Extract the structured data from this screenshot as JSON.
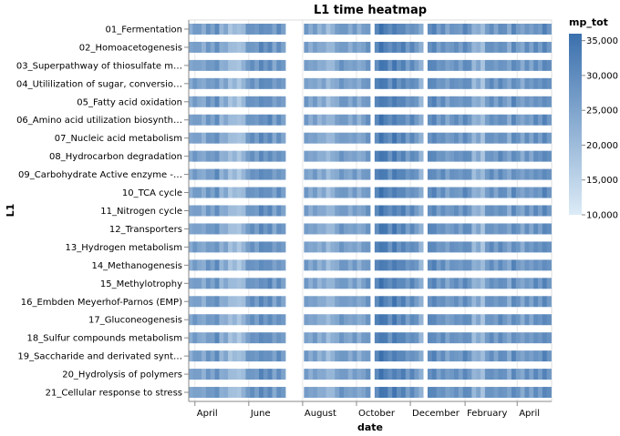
{
  "chart_data": {
    "type": "heatmap",
    "title": "L1 time heatmap",
    "xlabel": "date",
    "ylabel": "L1",
    "x_tick_labels": [
      "April",
      "June",
      "August",
      "October",
      "December",
      "February",
      "April"
    ],
    "x_domain": [
      "2020-03-25",
      "2021-05-10"
    ],
    "x_ticks": [
      "2020-04-01",
      "2020-06-01",
      "2020-08-01",
      "2020-10-01",
      "2020-12-01",
      "2021-02-01",
      "2021-04-01"
    ],
    "categories": [
      "01_Fermentation",
      "02_Homoacetogenesis",
      "03_Superpathway of thiosulfate m…",
      "04_Utililization of sugar, conversio…",
      "05_Fatty acid oxidation",
      "06_Amino acid utilization biosynth…",
      "07_Nucleic acid metabolism",
      "08_Hydrocarbon degradation",
      "09_Carbohydrate Active enzyme -…",
      "10_TCA cycle",
      "11_Nitrogen cycle",
      "12_Transporters",
      "13_Hydrogen metabolism",
      "14_Methanogenesis",
      "15_Methylotrophy",
      "16_Embden Meyerhof-Parnos (EMP)",
      "17_Gluconeogenesis",
      "18_Sulfur compounds metabolism",
      "19_Saccharide and derivated synt…",
      "20_Hydrolysis of polymers",
      "21_Cellular response to stress"
    ],
    "columns": [
      {
        "date": "2020-03-27",
        "value": 24000
      },
      {
        "date": "2020-04-01",
        "value": 27000
      },
      {
        "date": "2020-04-06",
        "value": 25500
      },
      {
        "date": "2020-04-11",
        "value": 23000
      },
      {
        "date": "2020-04-16",
        "value": 28000
      },
      {
        "date": "2020-04-21",
        "value": 26000
      },
      {
        "date": "2020-04-26",
        "value": 30000
      },
      {
        "date": "2020-05-01",
        "value": 22000
      },
      {
        "date": "2020-05-06",
        "value": 24500
      },
      {
        "date": "2020-05-11",
        "value": 19000
      },
      {
        "date": "2020-05-16",
        "value": 20500
      },
      {
        "date": "2020-05-21",
        "value": 18000
      },
      {
        "date": "2020-05-26",
        "value": 21000
      },
      {
        "date": "2020-05-31",
        "value": 27500
      },
      {
        "date": "2020-06-05",
        "value": 29000
      },
      {
        "date": "2020-06-10",
        "value": 26500
      },
      {
        "date": "2020-06-15",
        "value": 31000
      },
      {
        "date": "2020-06-20",
        "value": 28500
      },
      {
        "date": "2020-06-25",
        "value": 30500
      },
      {
        "date": "2020-06-30",
        "value": 25000
      },
      {
        "date": "2020-07-05",
        "value": 29500
      },
      {
        "date": "2020-07-10",
        "value": 26000
      },
      {
        "date": "2020-08-05",
        "value": 27000
      },
      {
        "date": "2020-08-10",
        "value": 24000
      },
      {
        "date": "2020-08-15",
        "value": 26500
      },
      {
        "date": "2020-08-20",
        "value": 22500
      },
      {
        "date": "2020-08-25",
        "value": 24500
      },
      {
        "date": "2020-08-30",
        "value": 20000
      },
      {
        "date": "2020-09-04",
        "value": 22000
      },
      {
        "date": "2020-09-09",
        "value": 25000
      },
      {
        "date": "2020-09-14",
        "value": 28000
      },
      {
        "date": "2020-09-19",
        "value": 26500
      },
      {
        "date": "2020-09-24",
        "value": 24000
      },
      {
        "date": "2020-09-29",
        "value": 27000
      },
      {
        "date": "2020-10-04",
        "value": 23000
      },
      {
        "date": "2020-10-09",
        "value": 26000
      },
      {
        "date": "2020-10-14",
        "value": 28500
      },
      {
        "date": "2020-10-24",
        "value": 31000
      },
      {
        "date": "2020-10-29",
        "value": 35000
      },
      {
        "date": "2020-11-03",
        "value": 33000
      },
      {
        "date": "2020-11-08",
        "value": 29000
      },
      {
        "date": "2020-11-13",
        "value": 34000
      },
      {
        "date": "2020-11-18",
        "value": 30000
      },
      {
        "date": "2020-11-23",
        "value": 32000
      },
      {
        "date": "2020-11-28",
        "value": 27000
      },
      {
        "date": "2020-12-03",
        "value": 30500
      },
      {
        "date": "2020-12-08",
        "value": 27500
      },
      {
        "date": "2020-12-13",
        "value": 22000
      },
      {
        "date": "2020-12-23",
        "value": 30000
      },
      {
        "date": "2020-12-28",
        "value": 31500
      },
      {
        "date": "2021-01-02",
        "value": 27000
      },
      {
        "date": "2021-01-07",
        "value": 29500
      },
      {
        "date": "2021-01-12",
        "value": 25000
      },
      {
        "date": "2021-01-17",
        "value": 28000
      },
      {
        "date": "2021-01-22",
        "value": 29000
      },
      {
        "date": "2021-01-27",
        "value": 26500
      },
      {
        "date": "2021-02-01",
        "value": 30500
      },
      {
        "date": "2021-02-06",
        "value": 28500
      },
      {
        "date": "2021-02-11",
        "value": 21000
      },
      {
        "date": "2021-02-16",
        "value": 24000
      },
      {
        "date": "2021-02-21",
        "value": 19000
      },
      {
        "date": "2021-02-26",
        "value": 27500
      },
      {
        "date": "2021-03-03",
        "value": 29500
      },
      {
        "date": "2021-03-08",
        "value": 26000
      },
      {
        "date": "2021-03-13",
        "value": 30000
      },
      {
        "date": "2021-03-18",
        "value": 28000
      },
      {
        "date": "2021-03-23",
        "value": 23500
      },
      {
        "date": "2021-03-28",
        "value": 31000
      },
      {
        "date": "2021-04-02",
        "value": 27500
      },
      {
        "date": "2021-04-07",
        "value": 24000
      },
      {
        "date": "2021-04-12",
        "value": 29000
      },
      {
        "date": "2021-04-17",
        "value": 25500
      },
      {
        "date": "2021-04-22",
        "value": 30000
      },
      {
        "date": "2021-04-27",
        "value": 27000
      },
      {
        "date": "2021-05-02",
        "value": 31500
      },
      {
        "date": "2021-05-07",
        "value": 28500
      }
    ],
    "legend": {
      "title": "mp_tot",
      "position": "top-right",
      "min": 10000,
      "max": 36000,
      "ticks": [
        10000,
        15000,
        20000,
        25000,
        30000,
        35000
      ],
      "tick_labels": [
        "10,000",
        "15,000",
        "20,000",
        "25,000",
        "30,000",
        "35,000"
      ],
      "color_low": "#dcebf7",
      "color_high": "#3b70ad"
    },
    "grid": true
  }
}
